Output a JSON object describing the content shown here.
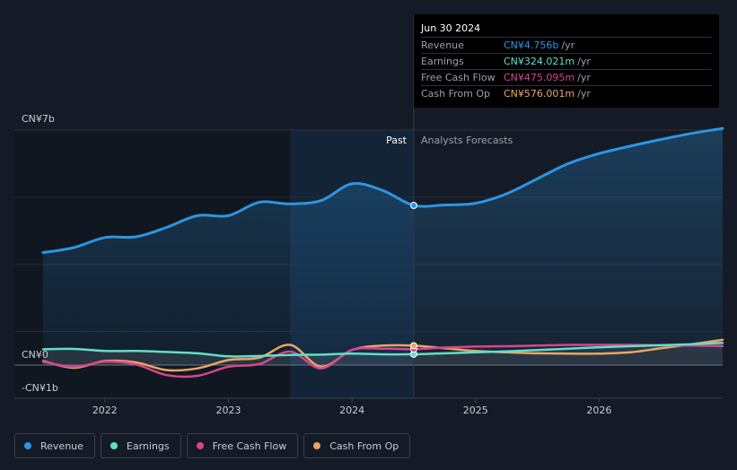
{
  "chart_data": {
    "type": "line",
    "title": "",
    "y_axis": {
      "min": -1,
      "max": 7,
      "unit": "CN¥ billion",
      "labels": [
        {
          "value": 7,
          "text": "CN¥7b"
        },
        {
          "value": 0,
          "text": "CN¥0"
        },
        {
          "value": -1,
          "text": "-CN¥1b"
        }
      ]
    },
    "x_axis": {
      "range": [
        2021.5,
        2027.0
      ],
      "ticks": [
        {
          "value": 2022,
          "text": "2022"
        },
        {
          "value": 2023,
          "text": "2023"
        },
        {
          "value": 2024,
          "text": "2024"
        },
        {
          "value": 2025,
          "text": "2025"
        },
        {
          "value": 2026,
          "text": "2026"
        }
      ]
    },
    "past_label": "Past",
    "forecast_label": "Analysts Forecasts",
    "divider_x": 2024.5,
    "highlight_start_x": 2023.5,
    "series": [
      {
        "name": "Revenue",
        "color": "#2d95e3",
        "points": [
          [
            2021.5,
            3.35
          ],
          [
            2021.75,
            3.5
          ],
          [
            2022.0,
            3.8
          ],
          [
            2022.25,
            3.82
          ],
          [
            2022.5,
            4.1
          ],
          [
            2022.75,
            4.45
          ],
          [
            2023.0,
            4.45
          ],
          [
            2023.25,
            4.85
          ],
          [
            2023.5,
            4.8
          ],
          [
            2023.75,
            4.9
          ],
          [
            2024.0,
            5.4
          ],
          [
            2024.25,
            5.2
          ],
          [
            2024.5,
            4.756
          ],
          [
            2024.75,
            4.77
          ],
          [
            2025.0,
            4.82
          ],
          [
            2025.25,
            5.1
          ],
          [
            2025.5,
            5.55
          ],
          [
            2025.75,
            6.0
          ],
          [
            2026.0,
            6.3
          ],
          [
            2026.25,
            6.52
          ],
          [
            2026.5,
            6.72
          ],
          [
            2026.75,
            6.9
          ],
          [
            2027.0,
            7.05
          ]
        ]
      },
      {
        "name": "Earnings",
        "color": "#5fe0c8",
        "points": [
          [
            2021.5,
            0.47
          ],
          [
            2021.75,
            0.48
          ],
          [
            2022.0,
            0.42
          ],
          [
            2022.25,
            0.42
          ],
          [
            2022.5,
            0.39
          ],
          [
            2022.75,
            0.35
          ],
          [
            2023.0,
            0.26
          ],
          [
            2023.25,
            0.27
          ],
          [
            2023.5,
            0.3
          ],
          [
            2023.75,
            0.31
          ],
          [
            2024.0,
            0.34
          ],
          [
            2024.25,
            0.32
          ],
          [
            2024.5,
            0.324
          ],
          [
            2024.75,
            0.35
          ],
          [
            2025.0,
            0.38
          ],
          [
            2025.25,
            0.41
          ],
          [
            2025.5,
            0.45
          ],
          [
            2025.75,
            0.49
          ],
          [
            2026.0,
            0.53
          ],
          [
            2026.25,
            0.56
          ],
          [
            2026.5,
            0.59
          ],
          [
            2026.75,
            0.62
          ],
          [
            2027.0,
            0.66
          ]
        ]
      },
      {
        "name": "Free Cash Flow",
        "color": "#d6468e",
        "points": [
          [
            2021.5,
            0.1
          ],
          [
            2021.75,
            -0.05
          ],
          [
            2022.0,
            0.1
          ],
          [
            2022.25,
            0.02
          ],
          [
            2022.5,
            -0.3
          ],
          [
            2022.75,
            -0.32
          ],
          [
            2023.0,
            -0.05
          ],
          [
            2023.25,
            0.03
          ],
          [
            2023.5,
            0.4
          ],
          [
            2023.75,
            -0.1
          ],
          [
            2024.0,
            0.45
          ],
          [
            2024.25,
            0.49
          ],
          [
            2024.5,
            0.475
          ],
          [
            2024.75,
            0.52
          ],
          [
            2025.0,
            0.55
          ],
          [
            2025.25,
            0.56
          ],
          [
            2025.5,
            0.58
          ],
          [
            2025.75,
            0.6
          ],
          [
            2026.0,
            0.6
          ],
          [
            2026.25,
            0.6
          ],
          [
            2026.5,
            0.59
          ],
          [
            2026.75,
            0.58
          ],
          [
            2027.0,
            0.57
          ]
        ]
      },
      {
        "name": "Cash From Op",
        "color": "#e8a663",
        "points": [
          [
            2021.5,
            0.12
          ],
          [
            2021.75,
            -0.08
          ],
          [
            2022.0,
            0.12
          ],
          [
            2022.25,
            0.08
          ],
          [
            2022.5,
            -0.15
          ],
          [
            2022.75,
            -0.1
          ],
          [
            2023.0,
            0.15
          ],
          [
            2023.25,
            0.22
          ],
          [
            2023.5,
            0.6
          ],
          [
            2023.75,
            -0.05
          ],
          [
            2024.0,
            0.45
          ],
          [
            2024.25,
            0.58
          ],
          [
            2024.5,
            0.576
          ],
          [
            2024.75,
            0.5
          ],
          [
            2025.0,
            0.42
          ],
          [
            2025.25,
            0.38
          ],
          [
            2025.5,
            0.35
          ],
          [
            2025.75,
            0.34
          ],
          [
            2026.0,
            0.34
          ],
          [
            2026.25,
            0.38
          ],
          [
            2026.5,
            0.5
          ],
          [
            2026.75,
            0.62
          ],
          [
            2027.0,
            0.75
          ]
        ]
      }
    ]
  },
  "tooltip": {
    "date": "Jun 30 2024",
    "rows": [
      {
        "label": "Revenue",
        "value": "CN¥4.756b",
        "unit": "/yr",
        "color": "#2d95e3"
      },
      {
        "label": "Earnings",
        "value": "CN¥324.021m",
        "unit": "/yr",
        "color": "#5fe0c8"
      },
      {
        "label": "Free Cash Flow",
        "value": "CN¥475.095m",
        "unit": "/yr",
        "color": "#d6468e"
      },
      {
        "label": "Cash From Op",
        "value": "CN¥576.001m",
        "unit": "/yr",
        "color": "#e8a663"
      }
    ]
  },
  "legend": [
    {
      "label": "Revenue",
      "color": "#2d95e3"
    },
    {
      "label": "Earnings",
      "color": "#5fe0c8"
    },
    {
      "label": "Free Cash Flow",
      "color": "#d6468e"
    },
    {
      "label": "Cash From Op",
      "color": "#e8a663"
    }
  ]
}
